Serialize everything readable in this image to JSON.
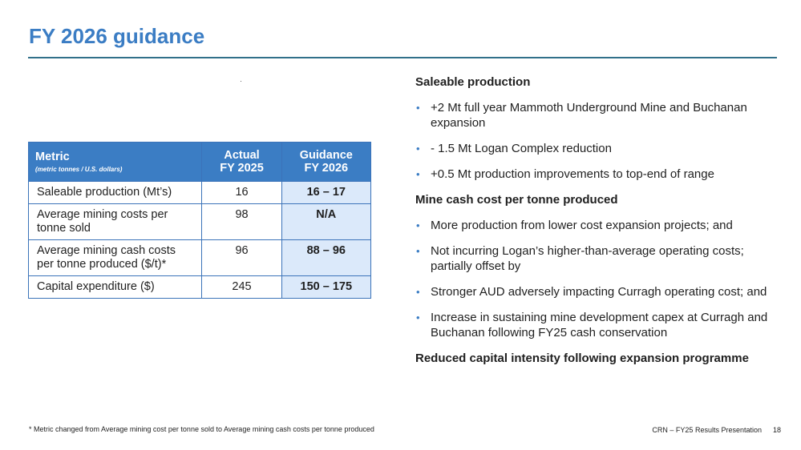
{
  "title": "FY 2026 guidance",
  "table": {
    "headers": {
      "metric": "Metric",
      "metric_note": "(metric tonnes / U.S. dollars)",
      "actual_line1": "Actual",
      "actual_line2": "FY 2025",
      "guidance_line1": "Guidance",
      "guidance_line2": "FY 2026"
    },
    "rows": [
      {
        "metric": "Saleable production (Mt’s)",
        "actual": "16",
        "guidance": "16 – 17"
      },
      {
        "metric": "Average mining costs per tonne sold",
        "actual": "98",
        "guidance": "N/A"
      },
      {
        "metric": "Average mining cash costs per tonne produced ($/t)*",
        "actual": "96",
        "guidance": "88 – 96"
      },
      {
        "metric": "Capital expenditure ($)",
        "actual": "245",
        "guidance": "150 – 175"
      }
    ]
  },
  "sections": [
    {
      "heading": "Saleable production",
      "bullets": [
        "+2 Mt full year Mammoth Underground Mine and Buchanan expansion",
        "- 1.5 Mt Logan Complex reduction",
        "+0.5 Mt production improvements to top-end of range"
      ]
    },
    {
      "heading": "Mine cash cost per tonne produced",
      "bullets": [
        "More production from lower cost expansion projects; and",
        "Not incurring Logan’s higher-than-average operating costs; partially offset by",
        "Stronger AUD adversely impacting Curragh operating cost; and",
        "Increase in sustaining mine development capex at Curragh and Buchanan following FY25 cash conservation"
      ]
    },
    {
      "heading": "Reduced capital intensity following expansion programme",
      "bullets": []
    }
  ],
  "bullet_char": "•",
  "footnote": "* Metric changed from Average mining cost per tonne sold to Average mining cash costs per tonne produced",
  "footer": {
    "presentation": "CRN – FY25 Results Presentation",
    "page": "18"
  },
  "colors": {
    "accent": "#3b7dc4",
    "rule": "#31708a",
    "guidance_fill": "#dbe9fa"
  }
}
